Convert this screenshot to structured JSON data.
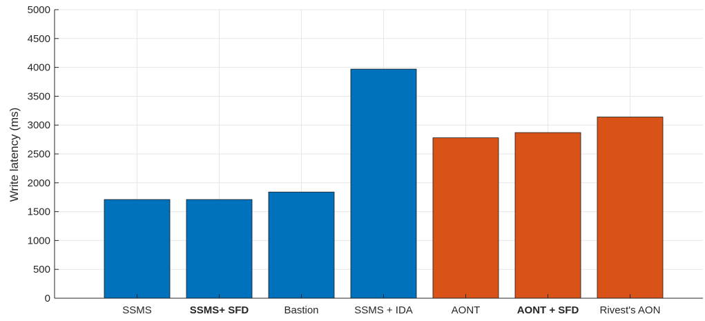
{
  "chart_data": {
    "type": "bar",
    "title": "",
    "xlabel": "",
    "ylabel": "Write latency (ms)",
    "ylim": [
      0,
      5000
    ],
    "yticks": [
      0,
      500,
      1000,
      1500,
      2000,
      2500,
      3000,
      3500,
      4000,
      4500,
      5000
    ],
    "grid": true,
    "legend": "none",
    "categories": [
      "SSMS",
      "SSMS+ SFD",
      "Bastion",
      "SSMS + IDA",
      "AONT",
      "AONT + SFD",
      "Rivest's AON"
    ],
    "bold_categories": [
      "SSMS+ SFD",
      "AONT + SFD"
    ],
    "values": [
      1710,
      1710,
      1840,
      3970,
      2780,
      2870,
      3140
    ],
    "colors": [
      "#0072BD",
      "#0072BD",
      "#0072BD",
      "#0072BD",
      "#D95319",
      "#D95319",
      "#D95319"
    ]
  }
}
